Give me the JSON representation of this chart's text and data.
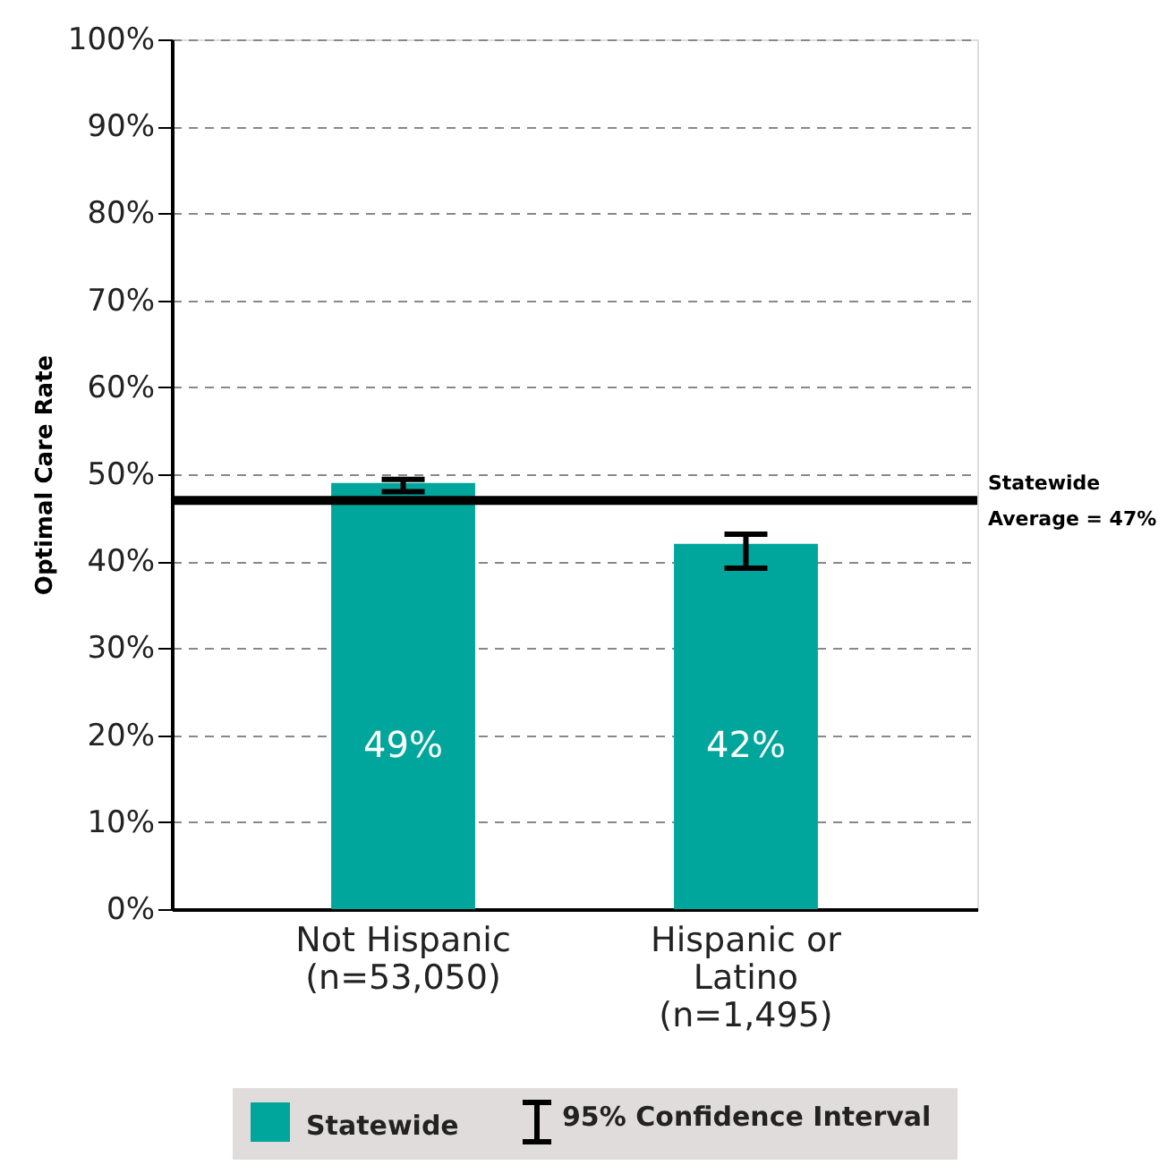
{
  "chart_data": {
    "type": "bar",
    "ylabel": "Optimal Care Rate",
    "categories": [
      "Not Hispanic\n(n=53,050)",
      "Hispanic or\nLatino\n(n=1,495)"
    ],
    "series": [
      {
        "name": "Statewide",
        "color": "#00a59b",
        "values": [
          49,
          42
        ],
        "value_labels": [
          "49%",
          "42%"
        ],
        "errors": [
          [
            48.0,
            49.4
          ],
          [
            39.2,
            43.1
          ]
        ]
      }
    ],
    "ylim": [
      0,
      100
    ],
    "yticks": [
      {
        "value": 0,
        "label": "0%"
      },
      {
        "value": 10,
        "label": "10%"
      },
      {
        "value": 20,
        "label": "20%"
      },
      {
        "value": 30,
        "label": "30%"
      },
      {
        "value": 40,
        "label": "40%"
      },
      {
        "value": 50,
        "label": "50%"
      },
      {
        "value": 60,
        "label": "60%"
      },
      {
        "value": 70,
        "label": "70%"
      },
      {
        "value": 80,
        "label": "80%"
      },
      {
        "value": 90,
        "label": "90%"
      },
      {
        "value": 100,
        "label": "100%"
      }
    ],
    "ref_lines": [
      {
        "axis": "y",
        "value": 47,
        "label": "Statewide\nAverage = 47%",
        "color": "#000000"
      }
    ],
    "annotations": [
      "95% Confidence Interval"
    ],
    "grid": "y",
    "legend": "bottom"
  }
}
